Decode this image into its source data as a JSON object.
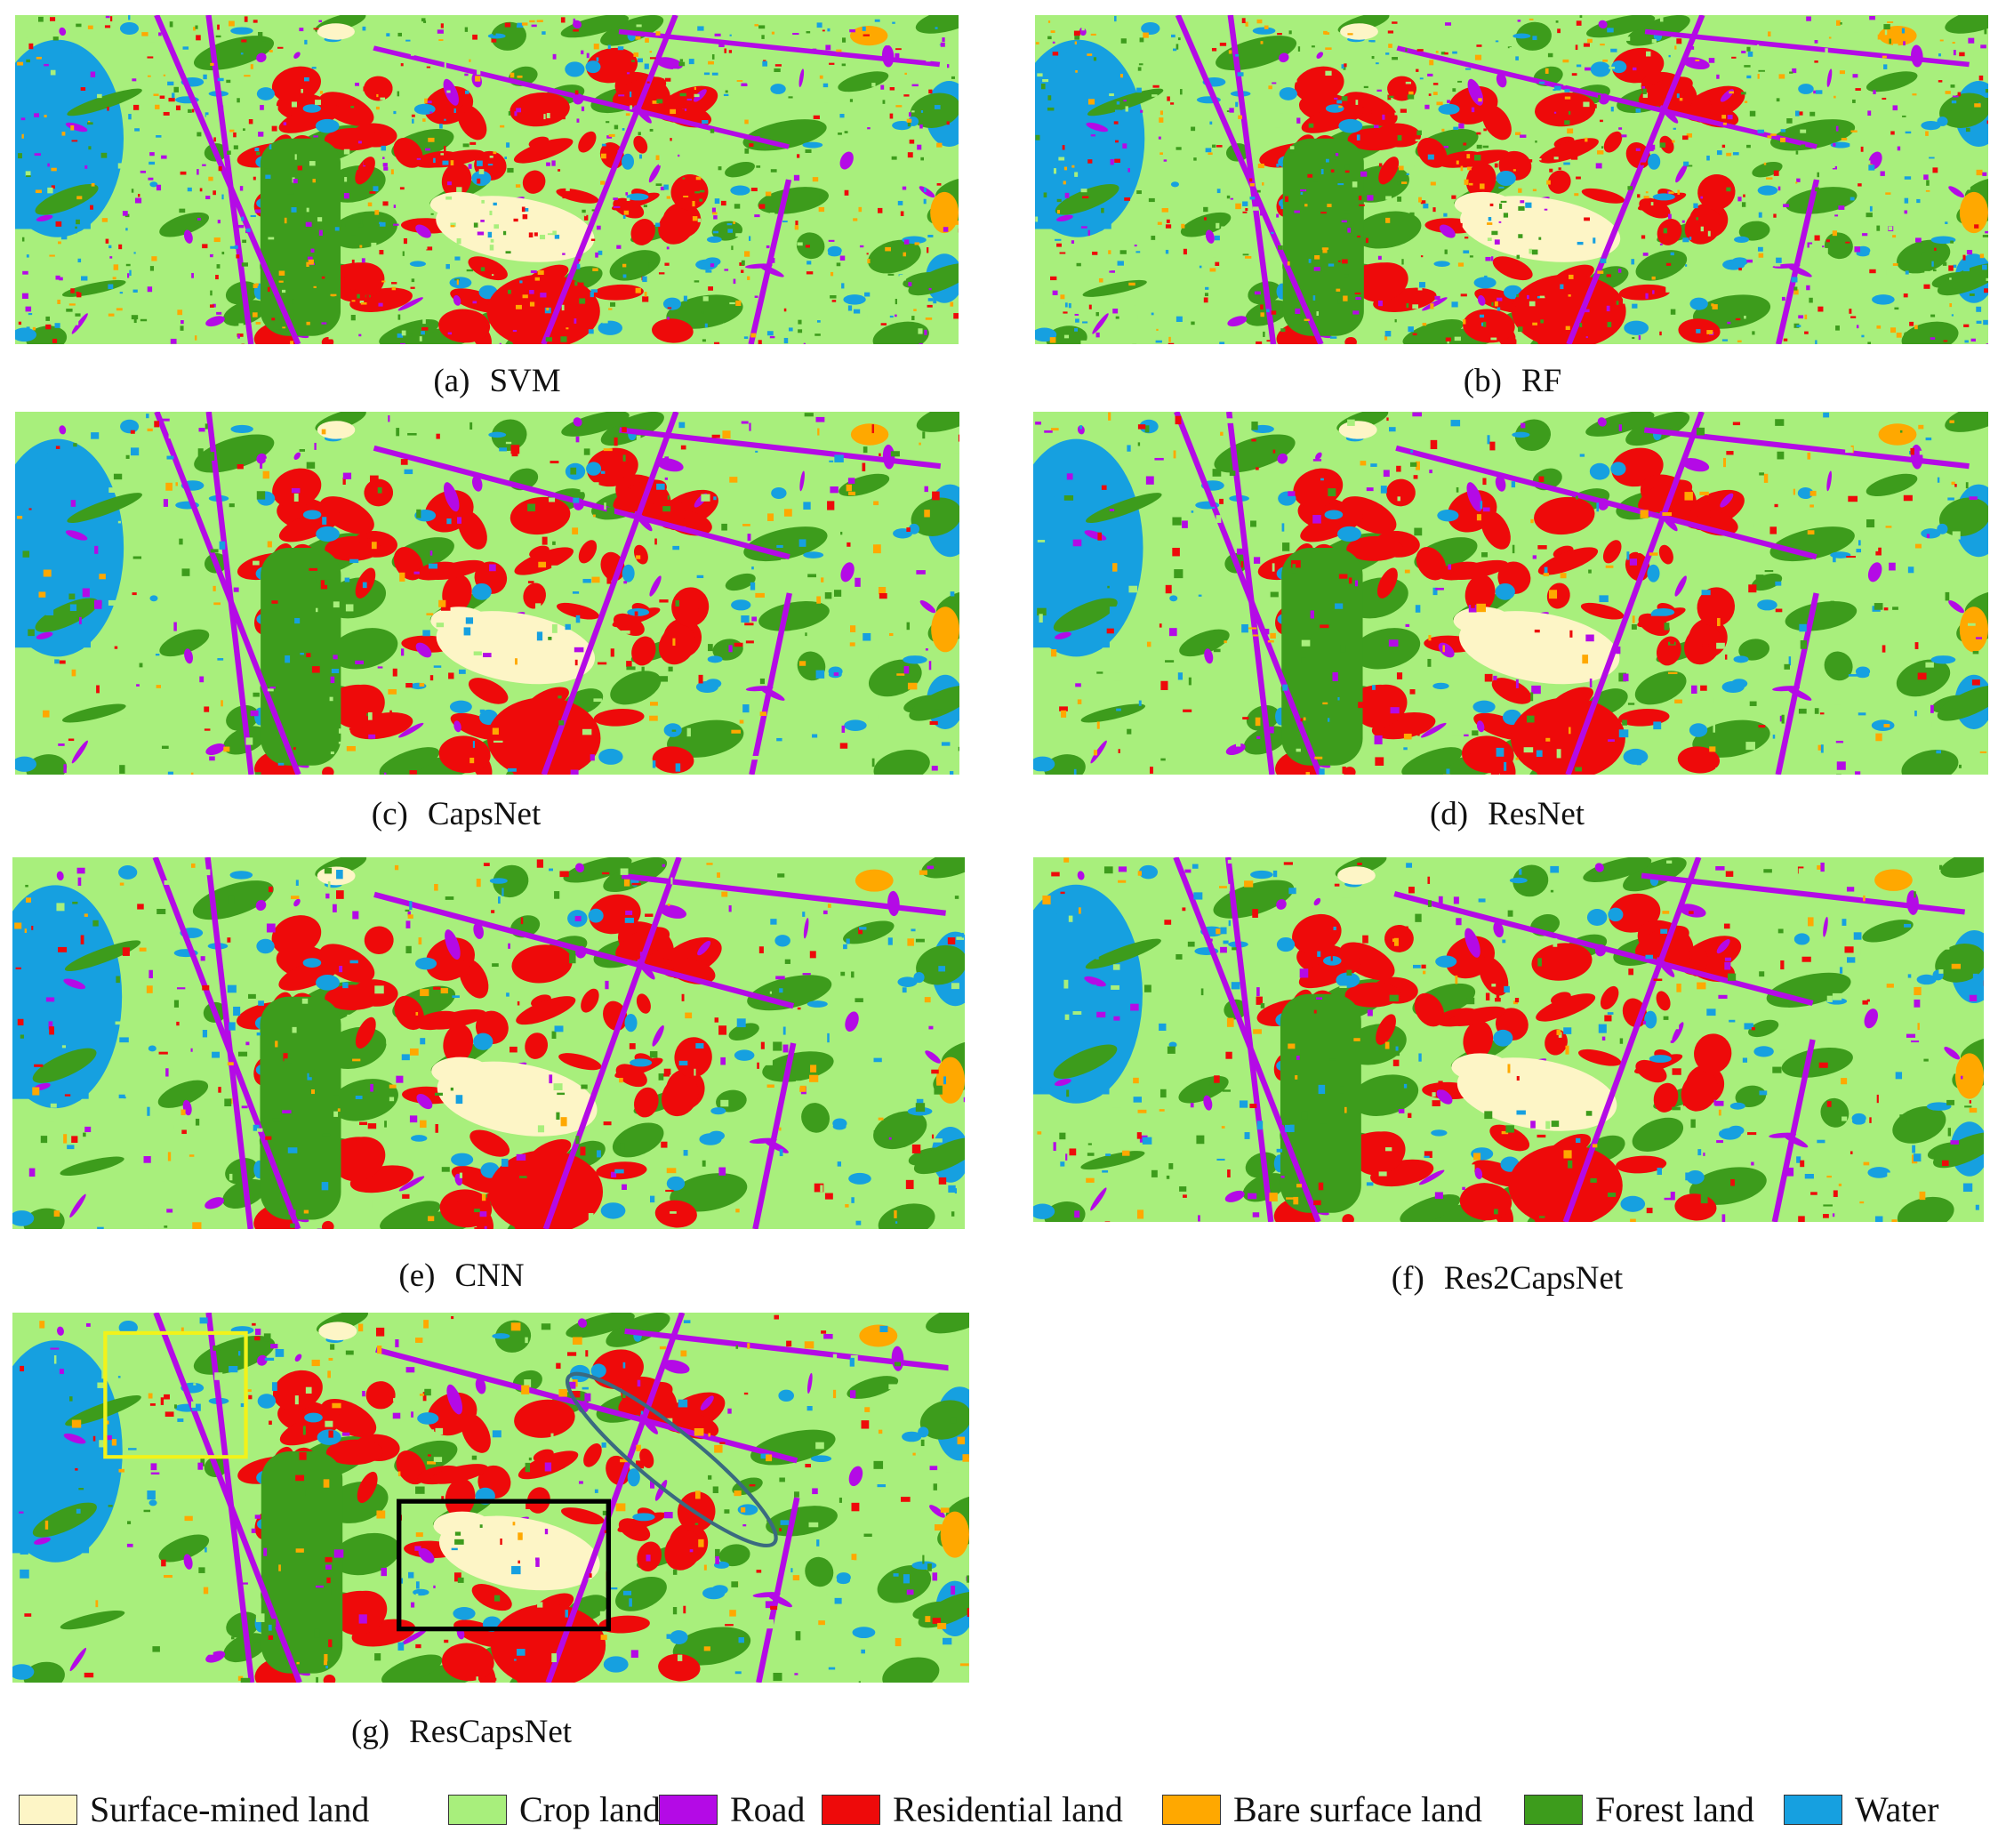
{
  "panels": [
    {
      "label": "(a)",
      "name": "SVM"
    },
    {
      "label": "(b)",
      "name": "RF"
    },
    {
      "label": "(c)",
      "name": "CapsNet"
    },
    {
      "label": "(d)",
      "name": "ResNet"
    },
    {
      "label": "(e)",
      "name": "CNN"
    },
    {
      "label": "(f)",
      "name": "Res2CapsNet"
    },
    {
      "label": "(g)",
      "name": "ResCapsNet"
    }
  ],
  "legend": [
    {
      "label": "Surface-mined land",
      "color": "#fdf5c6"
    },
    {
      "label": "Crop land",
      "color": "#a8ef7c"
    },
    {
      "label": "Road",
      "color": "#b40ae6"
    },
    {
      "label": "Residential land",
      "color": "#ee0a0a"
    },
    {
      "label": "Bare surface land",
      "color": "#ffa800"
    },
    {
      "label": "Forest land",
      "color": "#3d9c1c"
    },
    {
      "label": "Water",
      "color": "#16a0e0"
    }
  ]
}
